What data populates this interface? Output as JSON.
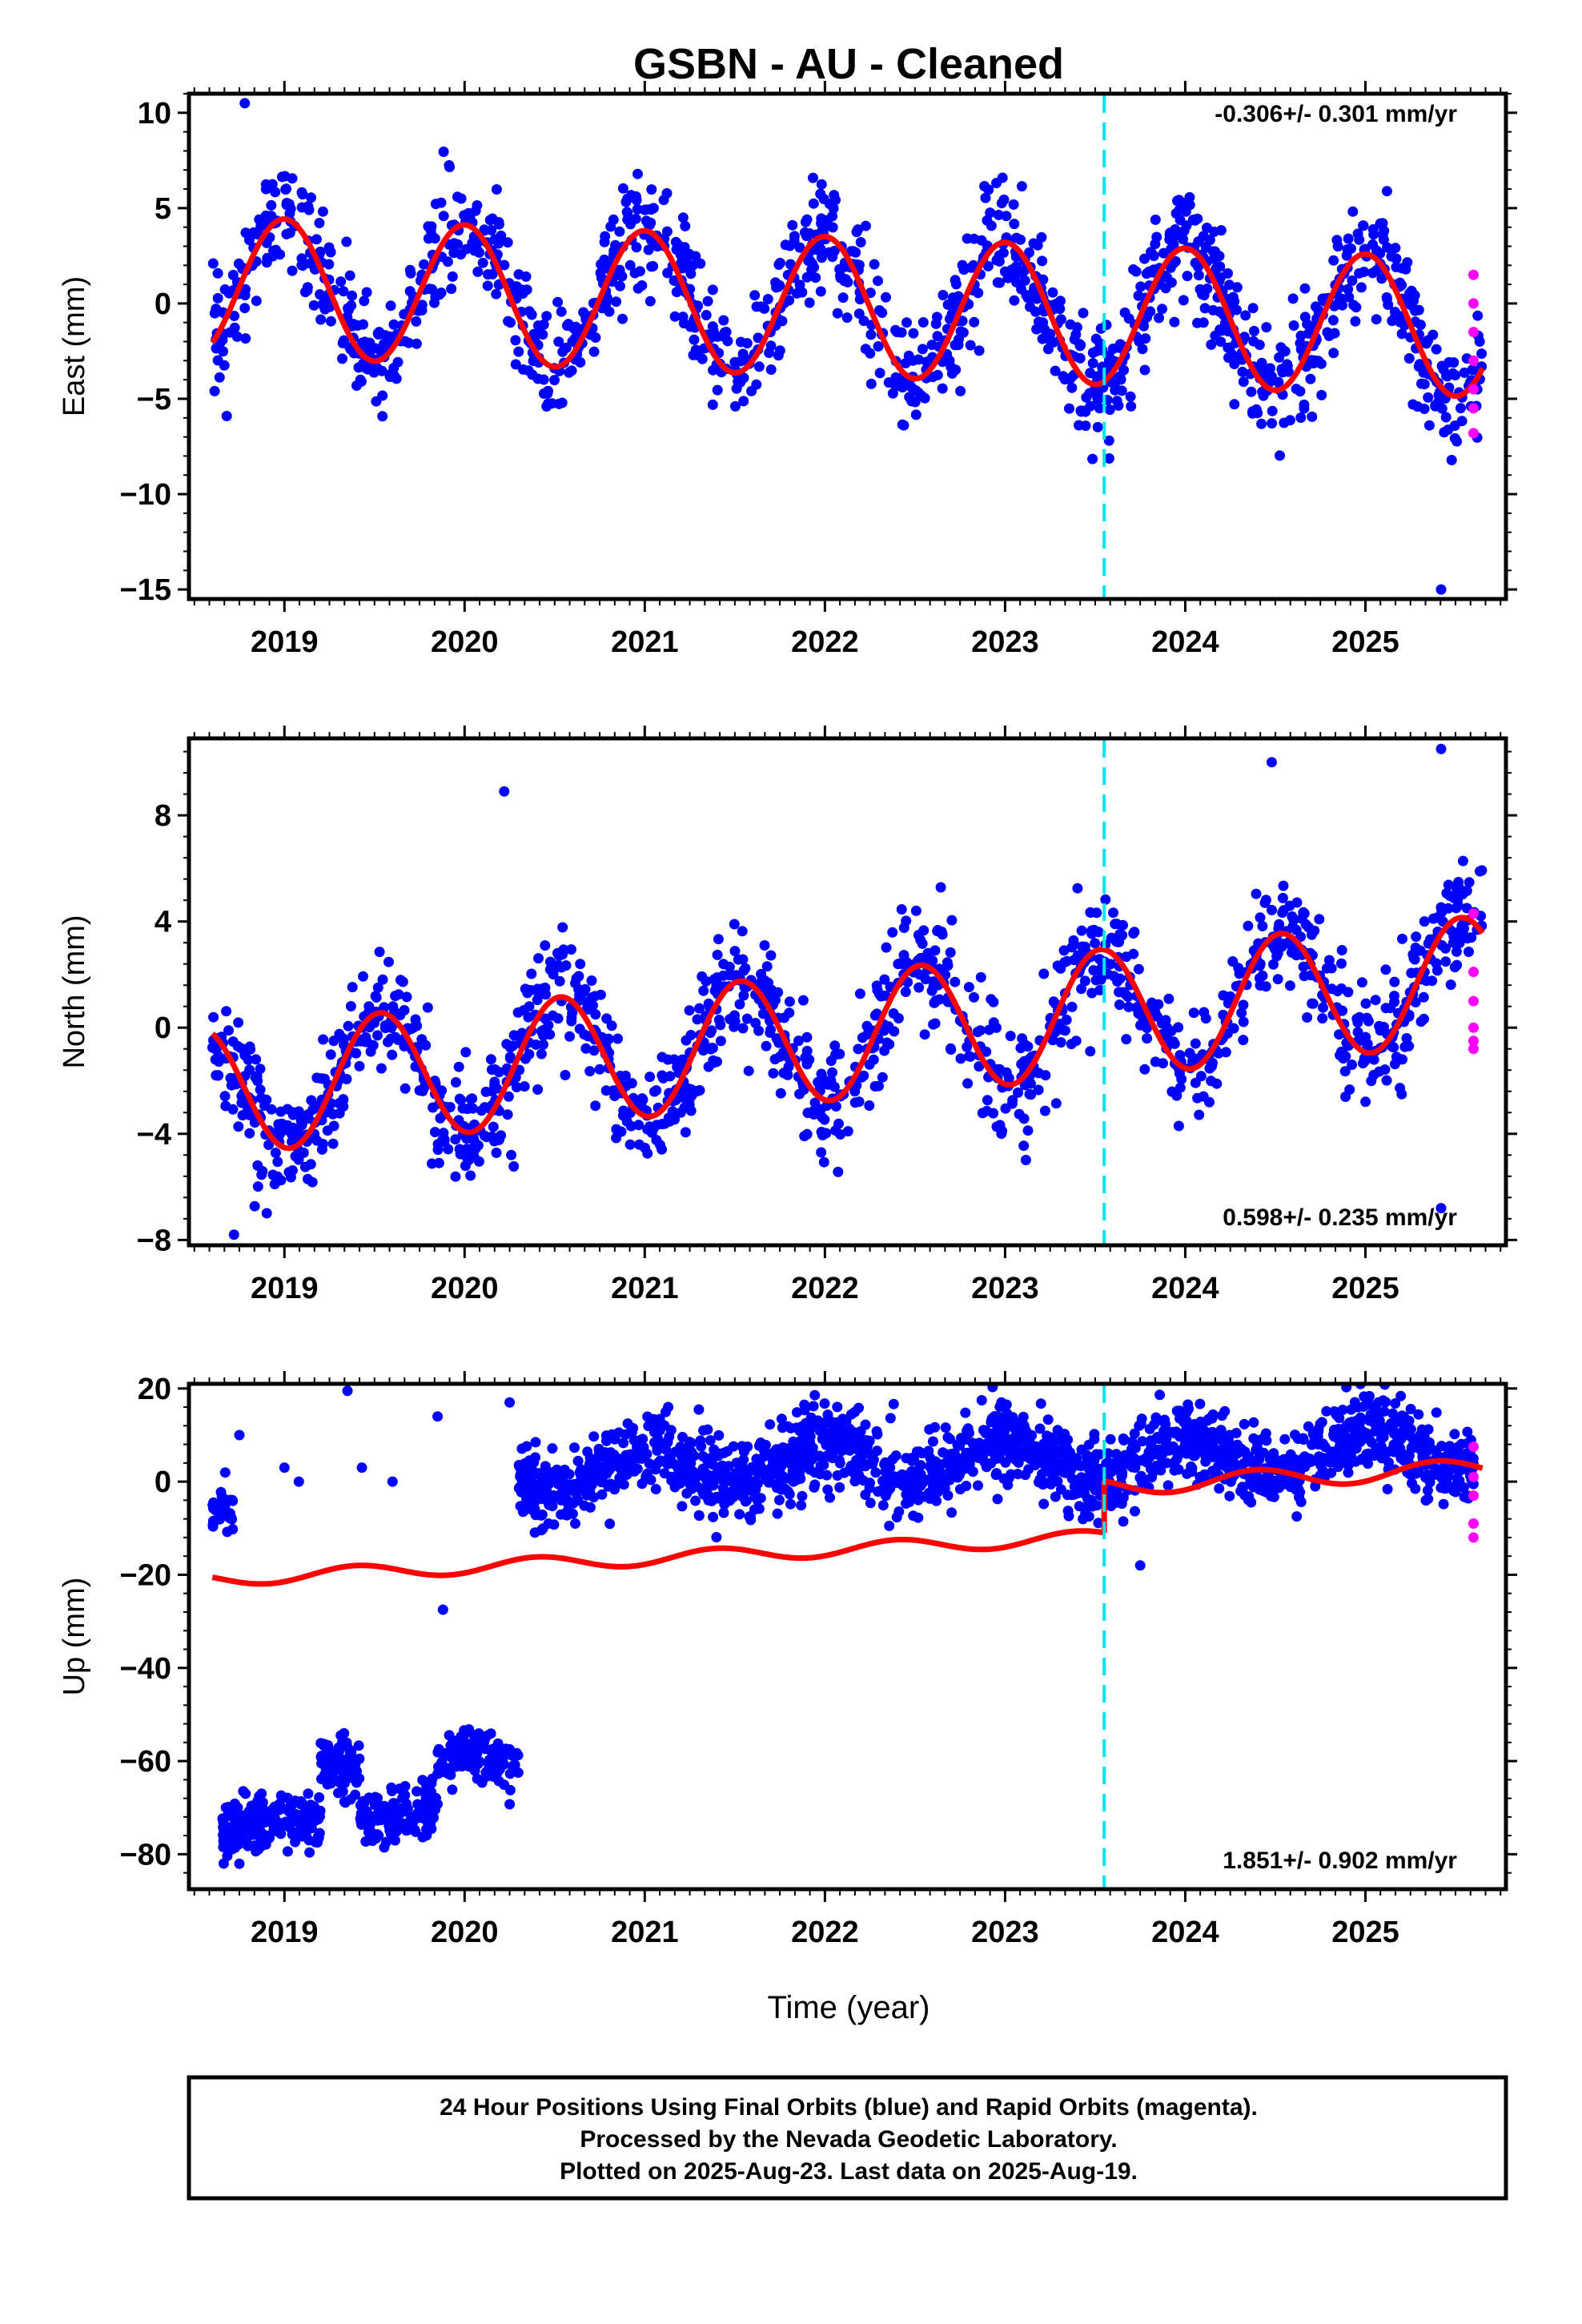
{
  "title": "GSBN  - AU - Cleaned",
  "xlabel": "Time (year)",
  "footer": [
    "24 Hour Positions Using Final Orbits (blue) and Rapid Orbits (magenta).",
    "Processed by the Nevada Geodetic Laboratory.",
    "Plotted on 2025-Aug-23. Last data on 2025-Aug-19."
  ],
  "colors": {
    "final_orbits": "#0000ff",
    "rapid_orbits": "#ff00ff",
    "model": "#ff0000",
    "break": "#00e5ee"
  },
  "chart_data": [
    {
      "type": "scatter",
      "panel": "east",
      "ylabel": "East (mm)",
      "rate_text": "-0.306+/- 0.301 mm/yr",
      "xlim": [
        2018.47,
        2025.78
      ],
      "ylim": [
        -15.5,
        11.0
      ],
      "yticks": [
        10,
        5,
        0,
        -5,
        -10,
        -15
      ],
      "ytick_labels": [
        "10",
        "5",
        "0",
        "−5",
        "−10",
        "−15"
      ],
      "xticks": [
        2019,
        2020,
        2021,
        2022,
        2023,
        2024,
        2025
      ],
      "xtick_labels": [
        "2019",
        "2020",
        "2021",
        "2022",
        "2023",
        "2024",
        "2025"
      ],
      "break_epoch": 2023.55,
      "series": [
        {
          "name": "Final Orbits (blue)",
          "model": {
            "start": 2018.6,
            "end": 2025.65,
            "offset": 0.9,
            "rate": -0.306,
            "amplitude": 3.65,
            "peak_phase": 0.0,
            "noise": 1.5,
            "n": 1400,
            "breaks": [],
            "gaps": []
          }
        },
        {
          "name": "Rapid Orbits (magenta)",
          "x": [
            2025.6,
            2025.6,
            2025.6,
            2025.6,
            2025.6,
            2025.6,
            2025.6
          ],
          "y": [
            1.5,
            0.0,
            -1.5,
            -3.0,
            -4.5,
            -5.5,
            -6.8
          ]
        },
        {
          "name": "Model fit",
          "type": "line",
          "offset": 0.9,
          "rate": -0.306,
          "amplitude": 3.65,
          "peak_phase": 0.0,
          "start": 2018.6,
          "end": 2025.65
        }
      ],
      "outliers": {
        "x": [
          2018.78,
          2025.42
        ],
        "y": [
          10.5,
          -15.0
        ]
      }
    },
    {
      "type": "scatter",
      "panel": "north",
      "ylabel": "North (mm)",
      "rate_text": "0.598+/- 0.235 mm/yr",
      "xlim": [
        2018.47,
        2025.78
      ],
      "ylim": [
        -8.2,
        10.9
      ],
      "yticks": [
        8,
        4,
        0,
        -4,
        -8
      ],
      "ytick_labels": [
        "8",
        "4",
        "0",
        "−4",
        "−8"
      ],
      "xticks": [
        2019,
        2020,
        2021,
        2022,
        2023,
        2024,
        2025
      ],
      "xtick_labels": [
        "2019",
        "2020",
        "2021",
        "2022",
        "2023",
        "2024",
        "2025"
      ],
      "break_epoch": 2023.55,
      "series": [
        {
          "name": "Final Orbits (blue)",
          "model": {
            "start": 2018.6,
            "end": 2025.65,
            "offset": -2.4,
            "rate": 0.598,
            "amplitude": 2.4,
            "peak_phase": 0.53,
            "noise": 1.1,
            "n": 1400,
            "breaks": [],
            "gaps": []
          }
        },
        {
          "name": "Rapid Orbits (magenta)",
          "x": [
            2025.6,
            2025.6,
            2025.6,
            2025.6,
            2025.6,
            2025.6
          ],
          "y": [
            4.3,
            2.1,
            1.0,
            0.0,
            -0.5,
            -0.8
          ]
        },
        {
          "name": "Model fit",
          "type": "line",
          "offset": -2.4,
          "rate": 0.598,
          "amplitude": 2.4,
          "peak_phase": 0.53,
          "start": 2018.6,
          "end": 2025.65
        }
      ],
      "outliers": {
        "x": [
          2020.22,
          2024.48,
          2025.42,
          2025.42,
          2018.72
        ],
        "y": [
          8.9,
          10.0,
          10.5,
          -6.8,
          -7.8
        ]
      }
    },
    {
      "type": "scatter",
      "panel": "up",
      "ylabel": "Up (mm)",
      "rate_text": "1.851+/- 0.902 mm/yr",
      "xlim": [
        2018.47,
        2025.78
      ],
      "ylim": [
        -87.5,
        21.0
      ],
      "yticks": [
        20,
        0,
        -20,
        -40,
        -60,
        -80
      ],
      "ytick_labels": [
        "20",
        "0",
        "−20",
        "−40",
        "−60",
        "−80"
      ],
      "xticks": [
        2019,
        2020,
        2021,
        2022,
        2023,
        2024,
        2025
      ],
      "xtick_labels": [
        "2019",
        "2020",
        "2021",
        "2022",
        "2023",
        "2024",
        "2025"
      ],
      "break_epoch": 2023.55,
      "series": [
        {
          "name": "Final Orbits (blue)",
          "segments": [
            {
              "start": 2018.6,
              "end": 2018.72,
              "offset": -6,
              "amplitude": 2,
              "noise": 2.5,
              "n": 40
            },
            {
              "start": 2018.65,
              "end": 2019.2,
              "offset": -74,
              "amplitude": 2,
              "noise": 3.2,
              "n": 180
            },
            {
              "start": 2019.2,
              "end": 2019.42,
              "offset": -61,
              "amplitude": 1,
              "noise": 3.0,
              "n": 90
            },
            {
              "start": 2019.42,
              "end": 2019.85,
              "offset": -71,
              "amplitude": 2,
              "noise": 3.0,
              "n": 140
            },
            {
              "start": 2019.85,
              "end": 2020.3,
              "offset": -60,
              "amplitude": 1.5,
              "noise": 3.0,
              "n": 130
            },
            {
              "start": 2020.3,
              "end": 2023.55,
              "offset": 2,
              "rate": 1.0,
              "amplitude": 4.5,
              "noise": 4.2,
              "n": 1100
            },
            {
              "start": 2023.55,
              "end": 2025.6,
              "offset": 4,
              "rate": 1.851,
              "amplitude": 4.5,
              "noise": 4.0,
              "n": 700
            }
          ]
        },
        {
          "name": "Rapid Orbits (magenta)",
          "x": [
            2025.6,
            2025.6,
            2025.6,
            2025.6,
            2025.6
          ],
          "y": [
            7.5,
            1.0,
            -3.0,
            -9.0,
            -12.0
          ]
        },
        {
          "name": "Model fit",
          "type": "line",
          "pieces": [
            {
              "start": 2018.6,
              "end": 2023.55,
              "offset": -21.0,
              "rate": 1.851,
              "amplitude": 1.5,
              "peak_phase": 0.4,
              "t0": 2018.6
            },
            {
              "start": 2023.55,
              "end": 2025.65,
              "offset": -1.0,
              "rate": 1.851,
              "amplitude": 2.0,
              "peak_phase": 0.4,
              "t0": 2023.55
            }
          ]
        }
      ],
      "outliers": {
        "x": [
          2018.75,
          2019.35,
          2019.43,
          2019.6,
          2019.85,
          2019.88,
          2020.25,
          2023.75,
          2019.0,
          2019.08
        ],
        "y": [
          10,
          19.5,
          3,
          0,
          14,
          -27.5,
          17,
          -18,
          3,
          0
        ]
      }
    }
  ]
}
